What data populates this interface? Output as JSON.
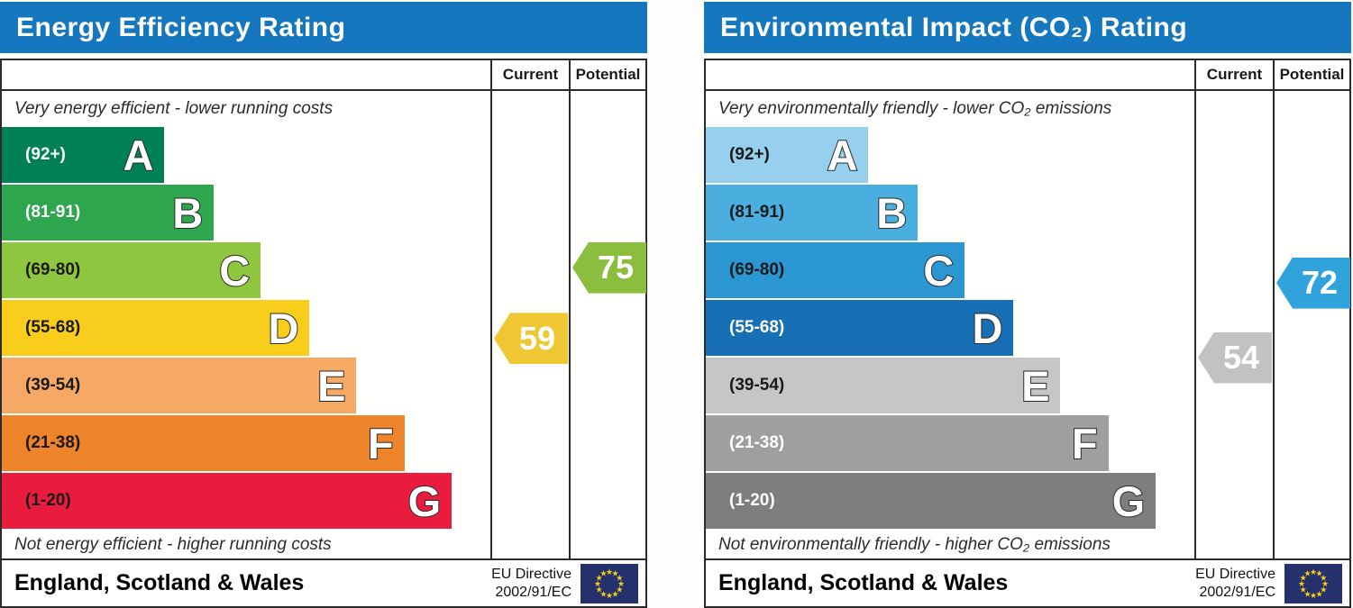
{
  "chart_data": [
    {
      "type": "bar",
      "subtype": "epc-band-rating",
      "title": "Energy Efficiency Rating",
      "columns": {
        "current": "Current",
        "potential": "Potential"
      },
      "top_note": "Very energy efficient - lower running costs",
      "bottom_note": "Not energy efficient - higher running costs",
      "bands": [
        {
          "range": "(92+)",
          "letter": "A",
          "min": 92,
          "max": 100,
          "color": "#008055",
          "text_color": "#ffffff",
          "width_pct": 33.3
        },
        {
          "range": "(81-91)",
          "letter": "B",
          "min": 81,
          "max": 91,
          "color": "#2ea64e",
          "text_color": "#ffffff",
          "width_pct": 43.4
        },
        {
          "range": "(69-80)",
          "letter": "C",
          "min": 69,
          "max": 80,
          "color": "#8fc63f",
          "text_color": "#1a1a1a",
          "width_pct": 53.0
        },
        {
          "range": "(55-68)",
          "letter": "D",
          "min": 55,
          "max": 68,
          "color": "#f9cd1b",
          "text_color": "#1a1a1a",
          "width_pct": 63.0
        },
        {
          "range": "(39-54)",
          "letter": "E",
          "min": 39,
          "max": 54,
          "color": "#f5a964",
          "text_color": "#1a1a1a",
          "width_pct": 72.6
        },
        {
          "range": "(21-38)",
          "letter": "F",
          "min": 21,
          "max": 38,
          "color": "#ee8429",
          "text_color": "#1a1a1a",
          "width_pct": 82.4
        },
        {
          "range": "(1-20)",
          "letter": "G",
          "min": 1,
          "max": 20,
          "color": "#ea1c3d",
          "text_color": "#1a1a1a",
          "width_pct": 92.1
        }
      ],
      "current": {
        "value": 59,
        "band": "D",
        "color": "#eec733"
      },
      "potential": {
        "value": 75,
        "band": "C",
        "color": "#8bbd3e"
      },
      "footer": {
        "region": "England, Scotland & Wales",
        "directive_line1": "EU Directive",
        "directive_line2": "2002/91/EC"
      }
    },
    {
      "type": "bar",
      "subtype": "epc-band-rating",
      "title": "Environmental Impact (CO₂) Rating",
      "columns": {
        "current": "Current",
        "potential": "Potential"
      },
      "top_note": "Very environmentally friendly - lower CO₂ emissions",
      "bottom_note": "Not environmentally friendly - higher CO₂ emissions",
      "bands": [
        {
          "range": "(92+)",
          "letter": "A",
          "min": 92,
          "max": 100,
          "color": "#97d0ee",
          "text_color": "#1a1a1a",
          "width_pct": 33.3
        },
        {
          "range": "(81-91)",
          "letter": "B",
          "min": 81,
          "max": 91,
          "color": "#4aaede",
          "text_color": "#1a1a1a",
          "width_pct": 43.4
        },
        {
          "range": "(69-80)",
          "letter": "C",
          "min": 69,
          "max": 80,
          "color": "#2b97d2",
          "text_color": "#1a1a1a",
          "width_pct": 53.0
        },
        {
          "range": "(55-68)",
          "letter": "D",
          "min": 55,
          "max": 68,
          "color": "#176fb5",
          "text_color": "#ffffff",
          "width_pct": 63.0
        },
        {
          "range": "(39-54)",
          "letter": "E",
          "min": 39,
          "max": 54,
          "color": "#c6c6c6",
          "text_color": "#1a1a1a",
          "width_pct": 72.6
        },
        {
          "range": "(21-38)",
          "letter": "F",
          "min": 21,
          "max": 38,
          "color": "#9f9f9f",
          "text_color": "#ffffff",
          "width_pct": 82.4
        },
        {
          "range": "(1-20)",
          "letter": "G",
          "min": 1,
          "max": 20,
          "color": "#7e7e7e",
          "text_color": "#ffffff",
          "width_pct": 92.1
        }
      ],
      "current": {
        "value": 54,
        "band": "E",
        "color": "#c2c2c2"
      },
      "potential": {
        "value": 72,
        "band": "C",
        "color": "#31a3dc"
      },
      "footer": {
        "region": "England, Scotland & Wales",
        "directive_line1": "EU Directive",
        "directive_line2": "2002/91/EC"
      }
    }
  ],
  "colors": {
    "header_bg": "#1577bd",
    "eu_flag_bg": "#24316d",
    "eu_star": "#f8d015"
  }
}
